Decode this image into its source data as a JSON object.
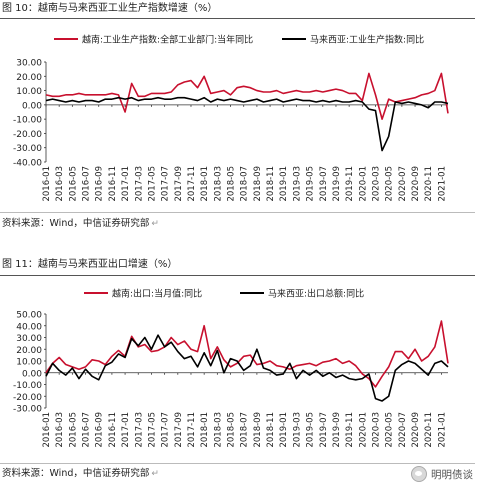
{
  "figures": [
    {
      "title": "图 10：越南与马来西亚工业生产指数增速（%）",
      "source": "资料来源：Wind，中信证券研究部"
    },
    {
      "title": "图 11：越南与马来西亚出口增速（%）",
      "source": "资料来源：Wind，中信证券研究部"
    }
  ],
  "watermark": "明明债谈",
  "colors": {
    "red": "#c8102e",
    "black": "#000000",
    "rule": "#555555"
  },
  "chart_data": [
    {
      "type": "line",
      "title": "越南与马来西亚工业生产指数增速（%）",
      "x": [
        "2016-01",
        "2016-02",
        "2016-03",
        "2016-04",
        "2016-05",
        "2016-06",
        "2016-07",
        "2016-08",
        "2016-09",
        "2016-10",
        "2016-11",
        "2016-12",
        "2017-01",
        "2017-02",
        "2017-03",
        "2017-04",
        "2017-05",
        "2017-06",
        "2017-07",
        "2017-08",
        "2017-09",
        "2017-10",
        "2017-11",
        "2017-12",
        "2018-01",
        "2018-02",
        "2018-03",
        "2018-04",
        "2018-05",
        "2018-06",
        "2018-07",
        "2018-08",
        "2018-09",
        "2018-10",
        "2018-11",
        "2018-12",
        "2019-01",
        "2019-02",
        "2019-03",
        "2019-04",
        "2019-05",
        "2019-06",
        "2019-07",
        "2019-08",
        "2019-09",
        "2019-10",
        "2019-11",
        "2019-12",
        "2020-01",
        "2020-02",
        "2020-03",
        "2020-04",
        "2020-05",
        "2020-06",
        "2020-07",
        "2020-08",
        "2020-09",
        "2020-10",
        "2020-11",
        "2020-12",
        "2021-01",
        "2021-02"
      ],
      "xtick_labels": [
        "2016-01",
        "2016-03",
        "2016-05",
        "2016-07",
        "2016-09",
        "2016-11",
        "2017-01",
        "2017-03",
        "2017-05",
        "2017-07",
        "2017-09",
        "2017-11",
        "2018-01",
        "2018-03",
        "2018-05",
        "2018-07",
        "2018-09",
        "2018-11",
        "2019-01",
        "2019-03",
        "2019-05",
        "2019-07",
        "2019-09",
        "2019-11",
        "2020-01",
        "2020-03",
        "2020-05",
        "2020-07",
        "2020-09",
        "2020-11",
        "2021-01"
      ],
      "yticks": [
        "30.00",
        "20.00",
        "10.00",
        "0.00",
        "-10.00",
        "-20.00",
        "-30.00",
        "-40.00"
      ],
      "ylim": [
        -40,
        30
      ],
      "grid": false,
      "legend_position": "top",
      "series": [
        {
          "name": "越南:工业生产指数:全部工业部门:当年同比",
          "color": "#c8102e",
          "values": [
            7,
            6,
            6,
            7,
            7,
            8,
            7,
            7,
            7,
            7,
            8,
            7,
            -5,
            15,
            6,
            6,
            8,
            8,
            8,
            9,
            14,
            16,
            17,
            12,
            20,
            8,
            9,
            10,
            7,
            12,
            13,
            12,
            10,
            9,
            9,
            10,
            8,
            9,
            10,
            9,
            9,
            10,
            9,
            10,
            11,
            10,
            8,
            8,
            3,
            22,
            7,
            -10,
            4,
            2,
            3,
            4,
            5,
            7,
            8,
            10,
            22,
            -6
          ]
        },
        {
          "name": "马来西亚:工业生产指数:同比",
          "color": "#000000",
          "values": [
            3,
            4,
            3,
            2,
            3,
            2,
            3,
            3,
            2,
            4,
            4,
            5,
            4,
            5,
            3,
            4,
            4,
            5,
            4,
            4,
            5,
            5,
            4,
            3,
            5,
            2,
            4,
            3,
            4,
            3,
            2,
            3,
            4,
            2,
            3,
            4,
            2,
            3,
            4,
            3,
            3,
            2,
            3,
            2,
            3,
            2,
            2,
            3,
            2,
            -3,
            -4,
            -32,
            -22,
            2,
            1,
            2,
            1,
            0,
            -2,
            2,
            2,
            1
          ]
        }
      ]
    },
    {
      "type": "line",
      "title": "越南与马来西亚出口增速（%）",
      "x": [
        "2016-01",
        "2016-02",
        "2016-03",
        "2016-04",
        "2016-05",
        "2016-06",
        "2016-07",
        "2016-08",
        "2016-09",
        "2016-10",
        "2016-11",
        "2016-12",
        "2017-01",
        "2017-02",
        "2017-03",
        "2017-04",
        "2017-05",
        "2017-06",
        "2017-07",
        "2017-08",
        "2017-09",
        "2017-10",
        "2017-11",
        "2017-12",
        "2018-01",
        "2018-02",
        "2018-03",
        "2018-04",
        "2018-05",
        "2018-06",
        "2018-07",
        "2018-08",
        "2018-09",
        "2018-10",
        "2018-11",
        "2018-12",
        "2019-01",
        "2019-02",
        "2019-03",
        "2019-04",
        "2019-05",
        "2019-06",
        "2019-07",
        "2019-08",
        "2019-09",
        "2019-10",
        "2019-11",
        "2019-12",
        "2020-01",
        "2020-02",
        "2020-03",
        "2020-04",
        "2020-05",
        "2020-06",
        "2020-07",
        "2020-08",
        "2020-09",
        "2020-10",
        "2020-11",
        "2020-12",
        "2021-01",
        "2021-02"
      ],
      "xtick_labels": [
        "2016-01",
        "2016-03",
        "2016-05",
        "2016-07",
        "2016-09",
        "2016-11",
        "2017-01",
        "2017-03",
        "2017-05",
        "2017-07",
        "2017-09",
        "2017-11",
        "2018-01",
        "2018-03",
        "2018-05",
        "2018-07",
        "2018-09",
        "2018-11",
        "2019-01",
        "2019-03",
        "2019-05",
        "2019-07",
        "2019-09",
        "2019-11",
        "2020-01",
        "2020-03",
        "2020-05",
        "2020-07",
        "2020-09",
        "2020-11",
        "2021-01"
      ],
      "yticks": [
        "50.00",
        "40.00",
        "30.00",
        "20.00",
        "10.00",
        "0.00",
        "-10.00",
        "-20.00",
        "-30.00"
      ],
      "ylim": [
        -30,
        50
      ],
      "grid": false,
      "legend_position": "top",
      "series": [
        {
          "name": "越南:出口:当月值:同比",
          "color": "#c8102e",
          "values": [
            0,
            8,
            13,
            7,
            5,
            3,
            5,
            11,
            10,
            7,
            14,
            19,
            14,
            31,
            22,
            24,
            18,
            19,
            22,
            30,
            24,
            27,
            20,
            18,
            40,
            12,
            22,
            11,
            5,
            8,
            14,
            15,
            7,
            8,
            10,
            6,
            5,
            3,
            6,
            7,
            8,
            6,
            9,
            10,
            12,
            8,
            10,
            6,
            -1,
            -5,
            -12,
            -3,
            5,
            18,
            18,
            12,
            20,
            10,
            14,
            22,
            44,
            8
          ]
        },
        {
          "name": "马来西亚:出口总额:同比",
          "color": "#000000",
          "values": [
            -3,
            8,
            2,
            -2,
            4,
            -5,
            3,
            -3,
            -6,
            6,
            9,
            16,
            13,
            29,
            23,
            30,
            20,
            32,
            22,
            26,
            18,
            12,
            14,
            5,
            17,
            6,
            19,
            0,
            12,
            10,
            2,
            6,
            20,
            4,
            2,
            -2,
            -1,
            8,
            -5,
            2,
            -2,
            2,
            -3,
            0,
            -4,
            -2,
            -5,
            -6,
            -5,
            -1,
            -22,
            -24,
            -20,
            2,
            7,
            10,
            8,
            3,
            -2,
            8,
            10,
            5
          ]
        }
      ]
    }
  ]
}
